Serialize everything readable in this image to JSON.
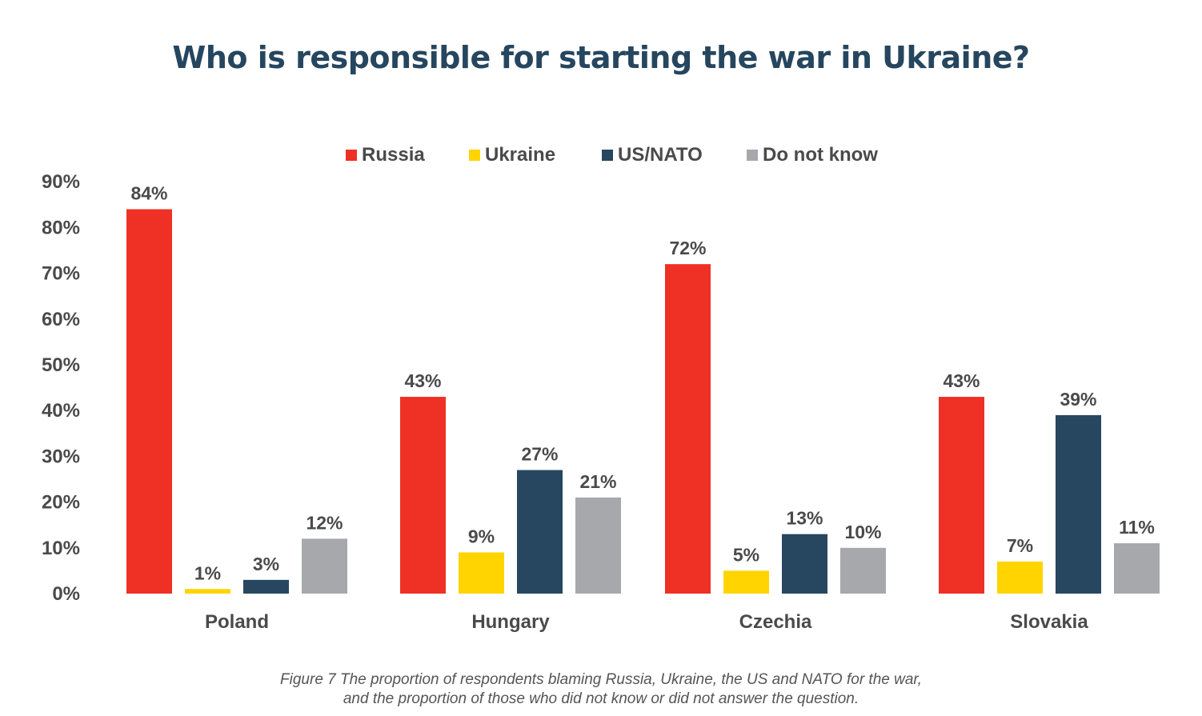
{
  "title": "Who is responsible for starting the war in Ukraine?",
  "caption_line1": "Figure 7 The proportion of respondents blaming Russia, Ukraine, the US and NATO for the war,",
  "caption_line2": "and the proportion of those who did not know or did not answer the question.",
  "chart_data": {
    "type": "bar",
    "title": "Who is responsible for starting the war in Ukraine?",
    "xlabel": "",
    "ylabel": "",
    "ylim": [
      0,
      90
    ],
    "yticks": [
      0,
      10,
      20,
      30,
      40,
      50,
      60,
      70,
      80,
      90
    ],
    "ytick_labels": [
      "0%",
      "10%",
      "20%",
      "30%",
      "40%",
      "50%",
      "60%",
      "70%",
      "80%",
      "90%"
    ],
    "grid": false,
    "legend_position": "top",
    "categories": [
      "Poland",
      "Hungary",
      "Czechia",
      "Slovakia"
    ],
    "series": [
      {
        "name": "Russia",
        "color": "#ee3124",
        "values": [
          84,
          43,
          72,
          43
        ],
        "labels": [
          "84%",
          "43%",
          "72%",
          "43%"
        ]
      },
      {
        "name": "Ukraine",
        "color": "#ffd400",
        "values": [
          1,
          9,
          5,
          7
        ],
        "labels": [
          "1%",
          "9%",
          "5%",
          "7%"
        ]
      },
      {
        "name": "US/NATO",
        "color": "#26475f",
        "values": [
          3,
          27,
          13,
          39
        ],
        "labels": [
          "3%",
          "27%",
          "13%",
          "39%"
        ]
      },
      {
        "name": "Do not know",
        "color": "#a7a8ab",
        "values": [
          12,
          21,
          10,
          11
        ],
        "labels": [
          "12%",
          "21%",
          "10%",
          "11%"
        ]
      }
    ]
  }
}
